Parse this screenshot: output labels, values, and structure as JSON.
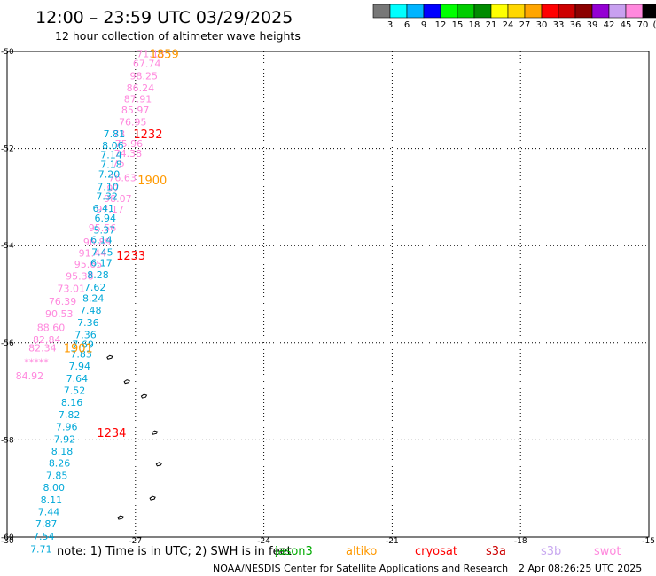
{
  "header": {
    "title": "12:00 – 23:59 UTC 03/29/2025",
    "subtitle": "12 hour collection of altimeter wave heights"
  },
  "legend": {
    "swatches": [
      "#777777",
      "#00ffff",
      "#00b4ff",
      "#0000ff",
      "#00ff00",
      "#00cd00",
      "#008b00",
      "#ffff00",
      "#ffd700",
      "#ffa500",
      "#ff0000",
      "#cd0000",
      "#8b0000",
      "#9400d3",
      "#c8a0f0",
      "#ff88dd",
      "#000000"
    ],
    "labels": [
      "3",
      "6",
      "9",
      "12",
      "15",
      "18",
      "21",
      "24",
      "27",
      "30",
      "33",
      "36",
      "39",
      "42",
      "45",
      "70",
      "(ft)"
    ]
  },
  "axes": {
    "y_ticks": [
      "-50",
      "-52",
      "-54",
      "-56",
      "-58",
      "-60"
    ],
    "x_ticks": [
      "-30",
      "-27",
      "-24",
      "-21",
      "-18",
      "-15"
    ]
  },
  "satellites": [
    {
      "name": "jason3",
      "color": "#00aa00"
    },
    {
      "name": "altiko",
      "color": "#ff9900"
    },
    {
      "name": "cryosat",
      "color": "#ff0000"
    },
    {
      "name": "s3a",
      "color": "#cc0000"
    },
    {
      "name": "s3b",
      "color": "#c8a8f0"
    },
    {
      "name": "swot",
      "color": "#ff88dd"
    }
  ],
  "footer": {
    "note": "note:  1) Time is in UTC;  2) SWH is in feet",
    "credit": "NOAA/NESDIS Center for Satellite Applications and Research",
    "timestamp": "2 Apr 08:26:25 UTC 2025"
  },
  "times": [
    {
      "text": "1859",
      "lon": -26.67,
      "lat": -50.05,
      "color": "#ff9900"
    },
    {
      "text": "1232",
      "lon": -27.05,
      "lat": -51.7,
      "color": "#ff0000"
    },
    {
      "text": "1900",
      "lon": -26.95,
      "lat": -52.65,
      "color": "#ff9900"
    },
    {
      "text": "1233",
      "lon": -27.45,
      "lat": -54.2,
      "color": "#ff0000"
    },
    {
      "text": "1901",
      "lon": -28.68,
      "lat": -56.1,
      "color": "#ff9900"
    },
    {
      "text": "1234",
      "lon": -27.9,
      "lat": -57.85,
      "color": "#ff0000"
    }
  ],
  "track_swot": {
    "color": "#ff88dd",
    "points": [
      {
        "v": "71.13",
        "lon": -26.97,
        "lat": -50.05
      },
      {
        "v": "67.74",
        "lon": -27.06,
        "lat": -50.25
      },
      {
        "v": "98.25",
        "lon": -27.13,
        "lat": -50.5
      },
      {
        "v": "86.24",
        "lon": -27.21,
        "lat": -50.75
      },
      {
        "v": "87.91",
        "lon": -27.27,
        "lat": -50.98
      },
      {
        "v": "85.97",
        "lon": -27.33,
        "lat": -51.2
      },
      {
        "v": "76.95",
        "lon": -27.39,
        "lat": -51.45
      },
      {
        "v": "73",
        "lon": -27.53,
        "lat": -51.7
      },
      {
        "v": "75.96",
        "lon": -27.48,
        "lat": -51.9
      },
      {
        "v": "74.38",
        "lon": -27.5,
        "lat": -52.1
      },
      {
        "v": "75",
        "lon": -27.54,
        "lat": -52.3
      },
      {
        "v": "76.63",
        "lon": -27.63,
        "lat": -52.6
      },
      {
        "v": "97",
        "lon": -27.67,
        "lat": -52.82
      },
      {
        "v": "98.07",
        "lon": -27.74,
        "lat": -53.03
      },
      {
        "v": "97.17",
        "lon": -27.92,
        "lat": -53.25
      },
      {
        "v": "95.56",
        "lon": -28.1,
        "lat": -53.63
      },
      {
        "v": "96.89",
        "lon": -28.22,
        "lat": -53.92
      },
      {
        "v": "91.44",
        "lon": -28.33,
        "lat": -54.15
      },
      {
        "v": "95.65",
        "lon": -28.43,
        "lat": -54.38
      },
      {
        "v": "95.38",
        "lon": -28.63,
        "lat": -54.63
      },
      {
        "v": "73.01",
        "lon": -28.83,
        "lat": -54.88
      },
      {
        "v": "76.39",
        "lon": -29.03,
        "lat": -55.15
      },
      {
        "v": "90.53",
        "lon": -29.11,
        "lat": -55.4
      },
      {
        "v": "88.60",
        "lon": -29.3,
        "lat": -55.68
      },
      {
        "v": "82.84",
        "lon": -29.4,
        "lat": -55.93
      },
      {
        "v": "82.34",
        "lon": -29.5,
        "lat": -56.1
      },
      {
        "v": "*****",
        "lon": -29.6,
        "lat": -56.4
      },
      {
        "v": "84.92",
        "lon": -29.8,
        "lat": -56.68
      }
    ]
  },
  "track_cyan": {
    "color": "#00a8d8",
    "points": [
      {
        "v": "7.81",
        "lon": -27.75,
        "lat": -51.7
      },
      {
        "v": "8.06",
        "lon": -27.78,
        "lat": -51.93
      },
      {
        "v": "7.14",
        "lon": -27.82,
        "lat": -52.13
      },
      {
        "v": "7.18",
        "lon": -27.82,
        "lat": -52.33
      },
      {
        "v": "7.20",
        "lon": -27.87,
        "lat": -52.53
      },
      {
        "v": "7.10",
        "lon": -27.9,
        "lat": -52.78
      },
      {
        "v": "7.32",
        "lon": -27.92,
        "lat": -52.98
      },
      {
        "v": "6.41",
        "lon": -28.0,
        "lat": -53.23
      },
      {
        "v": "6.94",
        "lon": -27.96,
        "lat": -53.43
      },
      {
        "v": "5.37",
        "lon": -27.98,
        "lat": -53.68
      },
      {
        "v": "6.14",
        "lon": -28.05,
        "lat": -53.88
      },
      {
        "v": "7.45",
        "lon": -28.03,
        "lat": -54.13
      },
      {
        "v": "6.17",
        "lon": -28.05,
        "lat": -54.35
      },
      {
        "v": "8.28",
        "lon": -28.13,
        "lat": -54.6
      },
      {
        "v": "7.62",
        "lon": -28.2,
        "lat": -54.85
      },
      {
        "v": "8.24",
        "lon": -28.24,
        "lat": -55.08
      },
      {
        "v": "7.48",
        "lon": -28.3,
        "lat": -55.33
      },
      {
        "v": "7.36",
        "lon": -28.36,
        "lat": -55.58
      },
      {
        "v": "7.36",
        "lon": -28.42,
        "lat": -55.83
      },
      {
        "v": "7.69",
        "lon": -28.48,
        "lat": -56.03
      },
      {
        "v": "7.83",
        "lon": -28.52,
        "lat": -56.23
      },
      {
        "v": "7.94",
        "lon": -28.56,
        "lat": -56.48
      },
      {
        "v": "7.64",
        "lon": -28.62,
        "lat": -56.73
      },
      {
        "v": "7.52",
        "lon": -28.68,
        "lat": -56.98
      },
      {
        "v": "8.16",
        "lon": -28.74,
        "lat": -57.23
      },
      {
        "v": "7.82",
        "lon": -28.8,
        "lat": -57.48
      },
      {
        "v": "7.96",
        "lon": -28.86,
        "lat": -57.73
      },
      {
        "v": "7.92",
        "lon": -28.91,
        "lat": -57.98
      },
      {
        "v": "8.18",
        "lon": -28.97,
        "lat": -58.23
      },
      {
        "v": "8.26",
        "lon": -29.03,
        "lat": -58.48
      },
      {
        "v": "7.85",
        "lon": -29.09,
        "lat": -58.73
      },
      {
        "v": "8.00",
        "lon": -29.16,
        "lat": -58.98
      },
      {
        "v": "8.11",
        "lon": -29.22,
        "lat": -59.23
      },
      {
        "v": "7.44",
        "lon": -29.28,
        "lat": -59.48
      },
      {
        "v": "7.87",
        "lon": -29.34,
        "lat": -59.73
      },
      {
        "v": "7.54",
        "lon": -29.4,
        "lat": -59.98
      },
      {
        "v": "7.71",
        "lon": -29.46,
        "lat": -60.25
      }
    ]
  },
  "islands": [
    {
      "name": "shag rocks",
      "lon": -27.6,
      "lat": -56.3
    },
    {
      "name": "islet-1",
      "lon": -27.2,
      "lat": -56.8
    },
    {
      "name": "islet-2",
      "lon": -26.8,
      "lat": -57.1
    },
    {
      "name": "islet-3",
      "lon": -26.55,
      "lat": -57.85
    },
    {
      "name": "islet-4",
      "lon": -26.45,
      "lat": -58.5
    },
    {
      "name": "islet-5",
      "lon": -26.6,
      "lat": -59.2
    },
    {
      "name": "islet-6",
      "lon": -27.35,
      "lat": -59.6
    }
  ]
}
